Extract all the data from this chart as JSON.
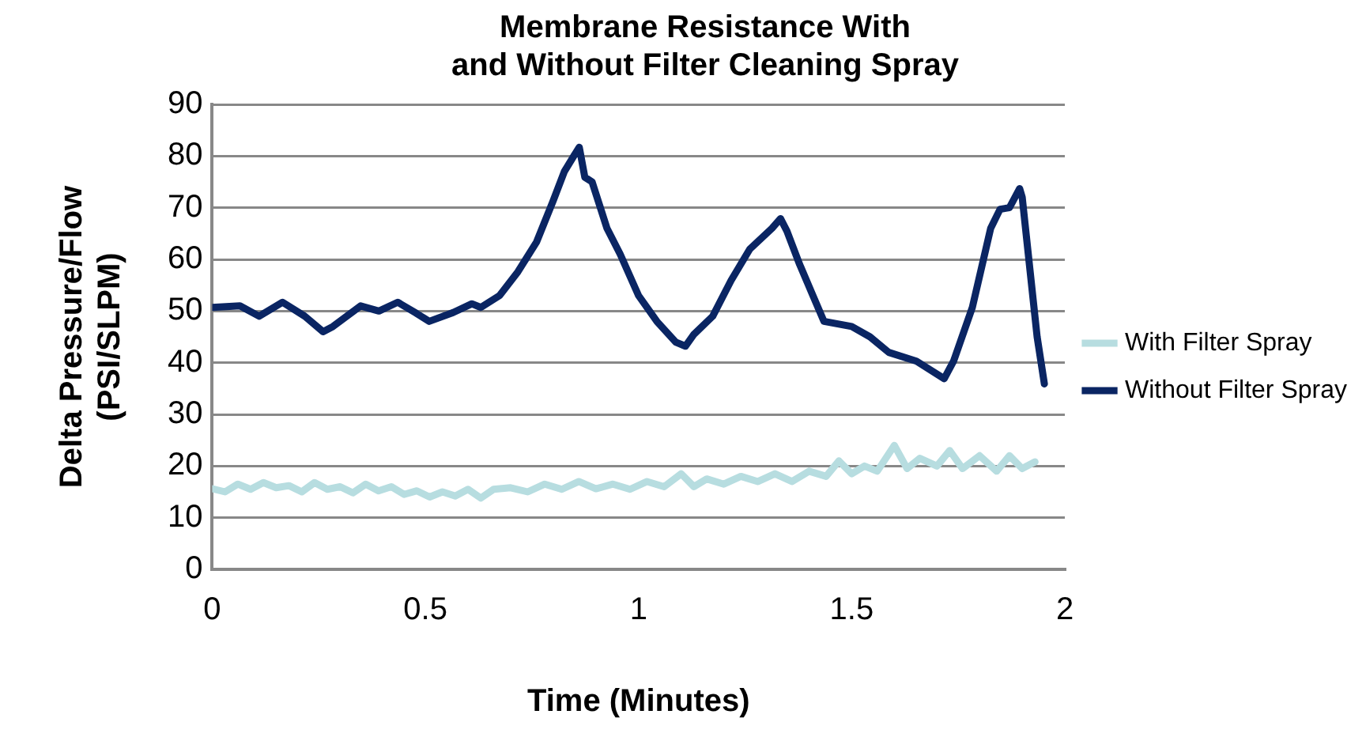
{
  "chart_data": {
    "type": "line",
    "title": "Membrane Resistance With\nand Without Filter Cleaning Spray",
    "xlabel": "Time (Minutes)",
    "ylabel": "Delta Pressure/Flow\n(PSI/SLPM)",
    "xlim": [
      0,
      2
    ],
    "xticks": [
      0,
      0.5,
      1,
      1.5,
      2
    ],
    "ylim": [
      0,
      90
    ],
    "yticks": [
      0,
      10,
      20,
      30,
      40,
      50,
      60,
      70,
      80,
      90
    ],
    "grid": "y",
    "legend": "right",
    "marker": "none",
    "line_style": "solid",
    "series": [
      {
        "name": "With Filter Spray",
        "color": "#b7dde0",
        "x": [
          0,
          0.03,
          0.06,
          0.09,
          0.12,
          0.15,
          0.18,
          0.21,
          0.24,
          0.27,
          0.3,
          0.33,
          0.36,
          0.39,
          0.42,
          0.45,
          0.48,
          0.51,
          0.54,
          0.57,
          0.6,
          0.63,
          0.66,
          0.7,
          0.74,
          0.78,
          0.82,
          0.86,
          0.9,
          0.94,
          0.98,
          1.02,
          1.06,
          1.1,
          1.13,
          1.16,
          1.2,
          1.24,
          1.28,
          1.32,
          1.36,
          1.4,
          1.44,
          1.47,
          1.5,
          1.53,
          1.56,
          1.6,
          1.63,
          1.66,
          1.7,
          1.73,
          1.76,
          1.8,
          1.84,
          1.87,
          1.9,
          1.93
        ],
        "values": [
          15.6,
          15,
          16.5,
          15.5,
          16.8,
          15.8,
          16.2,
          15,
          16.8,
          15.5,
          16,
          14.8,
          16.5,
          15.2,
          16,
          14.5,
          15.2,
          14,
          15,
          14.2,
          15.5,
          13.8,
          15.5,
          15.8,
          15,
          16.5,
          15.5,
          17,
          15.6,
          16.5,
          15.5,
          17,
          16,
          18.5,
          16,
          17.5,
          16.5,
          18,
          17,
          18.5,
          17,
          19,
          18,
          21,
          18.5,
          20,
          19,
          24,
          19.5,
          21.5,
          20,
          23,
          19.5,
          22,
          19,
          22,
          19.5,
          20.8
        ]
      },
      {
        "name": "Without Filter Spray",
        "color": "#0a2563",
        "x": [
          0,
          0.065,
          0.11,
          0.165,
          0.217,
          0.26,
          0.283,
          0.348,
          0.391,
          0.435,
          0.478,
          0.509,
          0.565,
          0.609,
          0.63,
          0.674,
          0.717,
          0.761,
          0.8,
          0.826,
          0.848,
          0.861,
          0.874,
          0.891,
          0.926,
          0.957,
          1.0,
          1.043,
          1.087,
          1.11,
          1.13,
          1.174,
          1.217,
          1.261,
          1.313,
          1.333,
          1.348,
          1.378,
          1.409,
          1.435,
          1.5,
          1.543,
          1.587,
          1.652,
          1.717,
          1.739,
          1.783,
          1.826,
          1.848,
          1.87,
          1.894,
          1.9,
          1.935,
          1.952
        ],
        "values": [
          50.7,
          51,
          49,
          51.7,
          49,
          46,
          47,
          51,
          50,
          51.7,
          49.6,
          48,
          49.7,
          51.4,
          50.7,
          53,
          57.6,
          63.4,
          71.4,
          77,
          80,
          81.7,
          75.9,
          75,
          66,
          61,
          53,
          48,
          44,
          43.2,
          45.5,
          49,
          55.9,
          62,
          66,
          67.9,
          65.5,
          59,
          53,
          48,
          47,
          45,
          42,
          40.3,
          36.9,
          40.3,
          50.7,
          66,
          69.7,
          70,
          73.7,
          72,
          45,
          35.9
        ]
      }
    ]
  }
}
